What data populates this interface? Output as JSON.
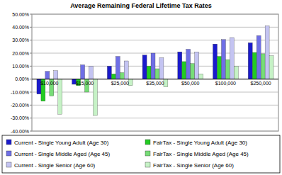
{
  "chart_data": {
    "type": "bar",
    "title": "Average Remaining Federal Lifetime Tax Rates",
    "categories": [
      "$10,000",
      "$15,000",
      "$25,000",
      "$35,000",
      "$50,000",
      "$100,000",
      "$250,000"
    ],
    "series": [
      {
        "name": "Current - Single Young Adult (Age 30)",
        "color": "#1a1acc",
        "values": [
          -11.5,
          -4,
          10,
          18.5,
          21,
          27,
          28
        ]
      },
      {
        "name": "FairTax - Single Young Adult (Age 30)",
        "color": "#22cc22",
        "values": [
          -17,
          -5,
          4,
          10,
          13.5,
          17.5,
          20.5
        ]
      },
      {
        "name": "Current - Single Middle Aged (Age 45)",
        "color": "#6f6fe6",
        "values": [
          6,
          11,
          17.5,
          20,
          23,
          30.5,
          33.5
        ]
      },
      {
        "name": "FairTax - Single Middle Aged (Age 45)",
        "color": "#77dd77",
        "values": [
          -13,
          -10,
          5,
          8,
          12,
          15,
          19.5
        ]
      },
      {
        "name": "Current - Single Senior (Age 60)",
        "color": "#c4c4f2",
        "values": [
          6.5,
          10,
          14,
          16.5,
          21,
          32,
          41
        ]
      },
      {
        "name": "FairTax - Single Senior (Age 60)",
        "color": "#c6f2c6",
        "values": [
          -27,
          -28,
          -5,
          -6,
          4,
          10,
          18
        ]
      }
    ],
    "ylim": [
      -40,
      50
    ],
    "yticks": [
      {
        "value": -40,
        "label": "-40.00%"
      },
      {
        "value": -30,
        "label": "-30.00%"
      },
      {
        "value": -20,
        "label": "-20.00%"
      },
      {
        "value": -10,
        "label": "-10.00%"
      },
      {
        "value": 0,
        "label": "0.00%"
      },
      {
        "value": 10,
        "label": "10.00%"
      },
      {
        "value": 20,
        "label": "20.00%"
      },
      {
        "value": 30,
        "label": "30.00%"
      },
      {
        "value": 40,
        "label": "40.00%"
      },
      {
        "value": 50,
        "label": "50.00%"
      }
    ],
    "grid": true,
    "legend": "bottom"
  }
}
